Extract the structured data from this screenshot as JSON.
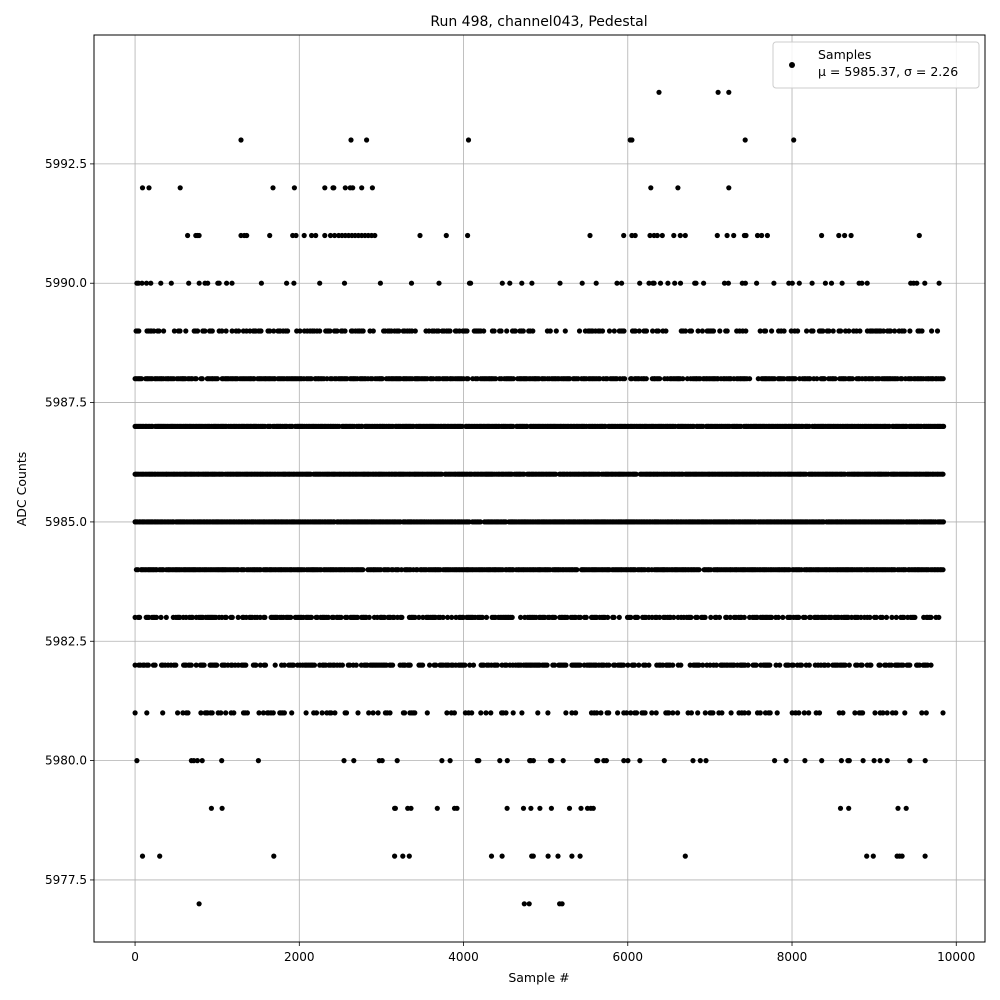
{
  "chart_data": {
    "type": "scatter",
    "title": "Run 498, channel043, Pedestal",
    "xlabel": "Sample #",
    "ylabel": "ADC Counts",
    "xlim": [
      -500,
      10350
    ],
    "ylim": [
      5976.2,
      5995.2
    ],
    "xticks": [
      0,
      2000,
      4000,
      6000,
      8000,
      10000
    ],
    "yticks": [
      5977.5,
      5980.0,
      5982.5,
      5985.0,
      5987.5,
      5990.0,
      5992.5
    ],
    "xtick_labels": [
      "0",
      "2000",
      "4000",
      "6000",
      "8000",
      "10000"
    ],
    "ytick_labels": [
      "5977.5",
      "5980.0",
      "5982.5",
      "5985.0",
      "5987.5",
      "5990.0",
      "5992.5"
    ],
    "grid": true,
    "legend": {
      "location": "top-right",
      "label": "Samples",
      "stats_text": "μ = 5985.37, σ = 2.26"
    },
    "marker_color": "#000000",
    "n_samples": 9850,
    "series": [
      {
        "name": "Samples",
        "rows": [
          {
            "y": 5994,
            "x": [
              6380,
              7100,
              7230
            ]
          },
          {
            "y": 5993,
            "x": [
              1290,
              2630,
              2820,
              4060,
              6030,
              6050,
              7430,
              8020
            ]
          },
          {
            "y": 5992,
            "x": [
              90,
              170,
              550,
              1680,
              1940,
              2310,
              2410,
              2420,
              2560,
              2620,
              2650,
              2760,
              2890,
              6280,
              6610,
              7230
            ]
          },
          {
            "y": 5991,
            "x": [
              640,
              740,
              760,
              780,
              1290,
              1330,
              1360,
              1640,
              1920,
              1960,
              2060,
              2150,
              2200,
              2310,
              2380,
              2430,
              2480,
              2520,
              2560,
              2600,
              2640,
              2680,
              2720,
              2760,
              2800,
              2840,
              2880,
              2920,
              3470,
              3790,
              4050,
              5540,
              5950,
              6050,
              6090,
              6270,
              6320,
              6360,
              6420,
              6560,
              6640,
              6700,
              7090,
              7210,
              7290,
              7420,
              7440,
              7580,
              7630,
              7700,
              8360,
              8570,
              8640,
              8720,
              9550
            ]
          },
          {
            "y": 5977,
            "x": [
              780,
              4740,
              4800,
              5170,
              5200
            ]
          },
          {
            "y": 5978,
            "x": [
              90,
              300,
              1690,
              3160,
              3260,
              3340,
              4340,
              4470,
              4830,
              4850,
              5030,
              5150,
              5320,
              5420,
              6700,
              8910,
              8990,
              9280,
              9310,
              9340,
              9620
            ]
          },
          {
            "y": 5979,
            "x": [
              930,
              1060,
              3160,
              3170,
              3320,
              3360,
              3680,
              3890,
              3920,
              4530,
              4730,
              4820,
              4930,
              5070,
              5290,
              5430,
              5510,
              5550,
              5580,
              8590,
              8690,
              9290,
              9390
            ]
          }
        ],
        "bands": [
          {
            "y": 5990,
            "density": 0.12
          },
          {
            "y": 5989,
            "density": 0.42
          },
          {
            "y": 5988,
            "density": 0.78
          },
          {
            "y": 5987,
            "density": 0.95
          },
          {
            "y": 5986,
            "density": 0.97
          },
          {
            "y": 5985,
            "density": 0.97
          },
          {
            "y": 5984,
            "density": 0.93
          },
          {
            "y": 5983,
            "density": 0.58
          },
          {
            "y": 5982,
            "density": 0.52
          },
          {
            "y": 5981,
            "density": 0.24
          },
          {
            "y": 5980,
            "density": 0.09
          }
        ]
      }
    ]
  }
}
